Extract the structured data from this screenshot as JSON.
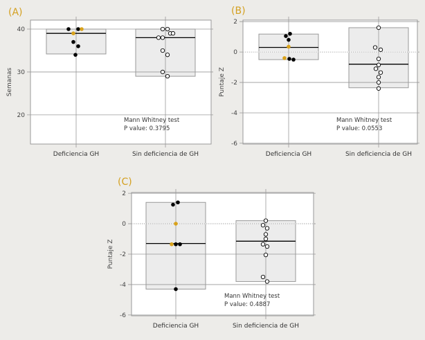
{
  "colors": {
    "background": "#edece9",
    "panel_label": "#d4a020",
    "highlight_point": "#d9a21b",
    "box_fill": "#ececec"
  },
  "chart_data": [
    {
      "type": "box",
      "panel_label": "(A)",
      "ylabel": "Semanas",
      "yticks": [
        20,
        30,
        40
      ],
      "ylim": [
        13.2,
        42.1
      ],
      "zero_reference_line": false,
      "categories": [
        "Deficiencia GH",
        "Sin deficiencia de GH"
      ],
      "boxes": [
        {
          "q_high": 40,
          "q_low": 34.2,
          "median": 39
        },
        {
          "q_high": 40,
          "q_low": 29,
          "median": 38
        }
      ],
      "points": [
        [
          {
            "y": 40,
            "hl": false
          },
          {
            "y": 40,
            "hl": false
          },
          {
            "y": 40,
            "hl": true
          },
          {
            "y": 39,
            "hl": true
          },
          {
            "y": 37,
            "hl": false
          },
          {
            "y": 36,
            "hl": false
          },
          {
            "y": 34,
            "hl": false
          }
        ],
        [
          {
            "y": 40
          },
          {
            "y": 40
          },
          {
            "y": 39
          },
          {
            "y": 39
          },
          {
            "y": 38
          },
          {
            "y": 38
          },
          {
            "y": 35
          },
          {
            "y": 34
          },
          {
            "y": 30
          },
          {
            "y": 29
          }
        ]
      ],
      "annotation": [
        "Mann Whitney test",
        "P value: 0.3795"
      ]
    },
    {
      "type": "box",
      "panel_label": "(B)",
      "ylabel": "Puntaje Z",
      "yticks": [
        -6,
        -4,
        -2,
        0,
        2
      ],
      "ylim": [
        -6.05,
        2.1
      ],
      "zero_reference_line": true,
      "categories": [
        "Deficiencia GH",
        "Sin deficiencia de GH"
      ],
      "boxes": [
        {
          "q_high": 1.18,
          "q_low": -0.5,
          "median": 0.3
        },
        {
          "q_high": 1.6,
          "q_low": -2.35,
          "median": -0.8
        }
      ],
      "points": [
        [
          {
            "y": 1.05,
            "hl": false
          },
          {
            "y": 1.2,
            "hl": false
          },
          {
            "y": 0.8,
            "hl": false
          },
          {
            "y": 0.35,
            "hl": true
          },
          {
            "y": -0.4,
            "hl": true
          },
          {
            "y": -0.45,
            "hl": false
          },
          {
            "y": -0.5,
            "hl": false
          }
        ],
        [
          {
            "y": 1.6
          },
          {
            "y": 0.3
          },
          {
            "y": 0.15
          },
          {
            "y": -0.45
          },
          {
            "y": -0.85
          },
          {
            "y": -1.1
          },
          {
            "y": -1.35
          },
          {
            "y": -1.65
          },
          {
            "y": -2.0
          },
          {
            "y": -2.4
          }
        ]
      ],
      "annotation": [
        "Mann Whitney test",
        "P value: 0.0553"
      ]
    },
    {
      "type": "box",
      "panel_label": "(C)",
      "ylabel": "Puntaje Z",
      "yticks": [
        -6,
        -4,
        -2,
        0,
        2
      ],
      "ylim": [
        -6.05,
        2.05
      ],
      "zero_reference_line": true,
      "categories": [
        "Deficiencia GH",
        "Sin deficiencia de GH"
      ],
      "boxes": [
        {
          "q_high": 1.4,
          "q_low": -4.3,
          "median": -1.3
        },
        {
          "q_high": 0.2,
          "q_low": -3.8,
          "median": -1.15
        }
      ],
      "points": [
        [
          {
            "y": 1.25,
            "hl": false
          },
          {
            "y": 1.4,
            "hl": false
          },
          {
            "y": 0.0,
            "hl": true
          },
          {
            "y": -1.35,
            "hl": true
          },
          {
            "y": -1.35,
            "hl": false
          },
          {
            "y": -1.35,
            "hl": false
          },
          {
            "y": -4.3,
            "hl": false
          }
        ],
        [
          {
            "y": 0.2
          },
          {
            "y": -0.1
          },
          {
            "y": -0.3
          },
          {
            "y": -0.7
          },
          {
            "y": -1.0
          },
          {
            "y": -1.35
          },
          {
            "y": -1.5
          },
          {
            "y": -2.05
          },
          {
            "y": -3.5
          },
          {
            "y": -3.8
          }
        ]
      ],
      "annotation": [
        "Mann Whitney test",
        "P value: 0.4887"
      ]
    }
  ]
}
